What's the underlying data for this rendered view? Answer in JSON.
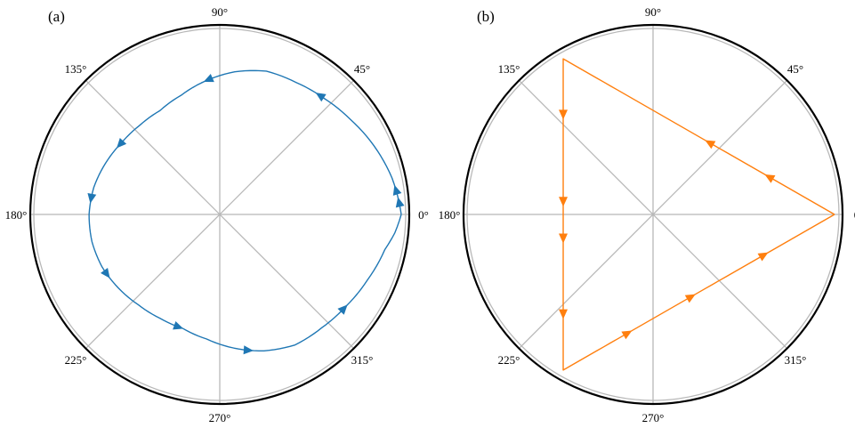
{
  "chart_data": [
    {
      "type": "line",
      "subtype": "polar",
      "panel_label": "(a)",
      "angle_ticks": [
        "0°",
        "45°",
        "90°",
        "135°",
        "180°",
        "225°",
        "270°",
        "315°"
      ],
      "grid": true,
      "series": [
        {
          "color": "#1f77b4",
          "r": [
            1.0,
            0.97,
            0.93,
            0.89,
            0.86,
            0.84,
            0.83,
            0.79,
            0.74,
            0.69,
            0.66,
            0.66,
            0.67,
            0.69,
            0.71,
            0.72,
            0.72,
            0.71,
            0.69,
            0.67,
            0.66,
            0.66,
            0.69,
            0.74,
            0.79,
            0.83,
            0.84,
            0.86,
            0.89,
            0.93,
            0.97,
            1.0
          ],
          "theta_deg": [
            0,
            12,
            24,
            36,
            48,
            60,
            72,
            84,
            96,
            108,
            120,
            132,
            144,
            156,
            168,
            180,
            192,
            204,
            216,
            228,
            240,
            252,
            264,
            276,
            288,
            300,
            312,
            324,
            336,
            348,
            354,
            360
          ],
          "arrows_theta_deg": [
            8,
            50,
            95,
            145,
            173,
            208,
            250,
            282,
            323,
            4
          ]
        }
      ]
    },
    {
      "type": "line",
      "subtype": "polar",
      "panel_label": "(b)",
      "angle_ticks": [
        "0",
        "45°",
        "90°",
        "135°",
        "180°",
        "225°",
        "270°",
        "315°"
      ],
      "grid": true,
      "series": [
        {
          "color": "#ff7f0e",
          "vertices_r": [
            1.0,
            0.99,
            0.99
          ],
          "vertices_theta_deg": [
            0,
            120,
            240
          ],
          "corner_rounding": 0.03,
          "arrows_theta_deg": [
            18,
            52,
            132,
            172,
            195,
            228,
            258,
            295,
            340
          ]
        }
      ]
    }
  ]
}
